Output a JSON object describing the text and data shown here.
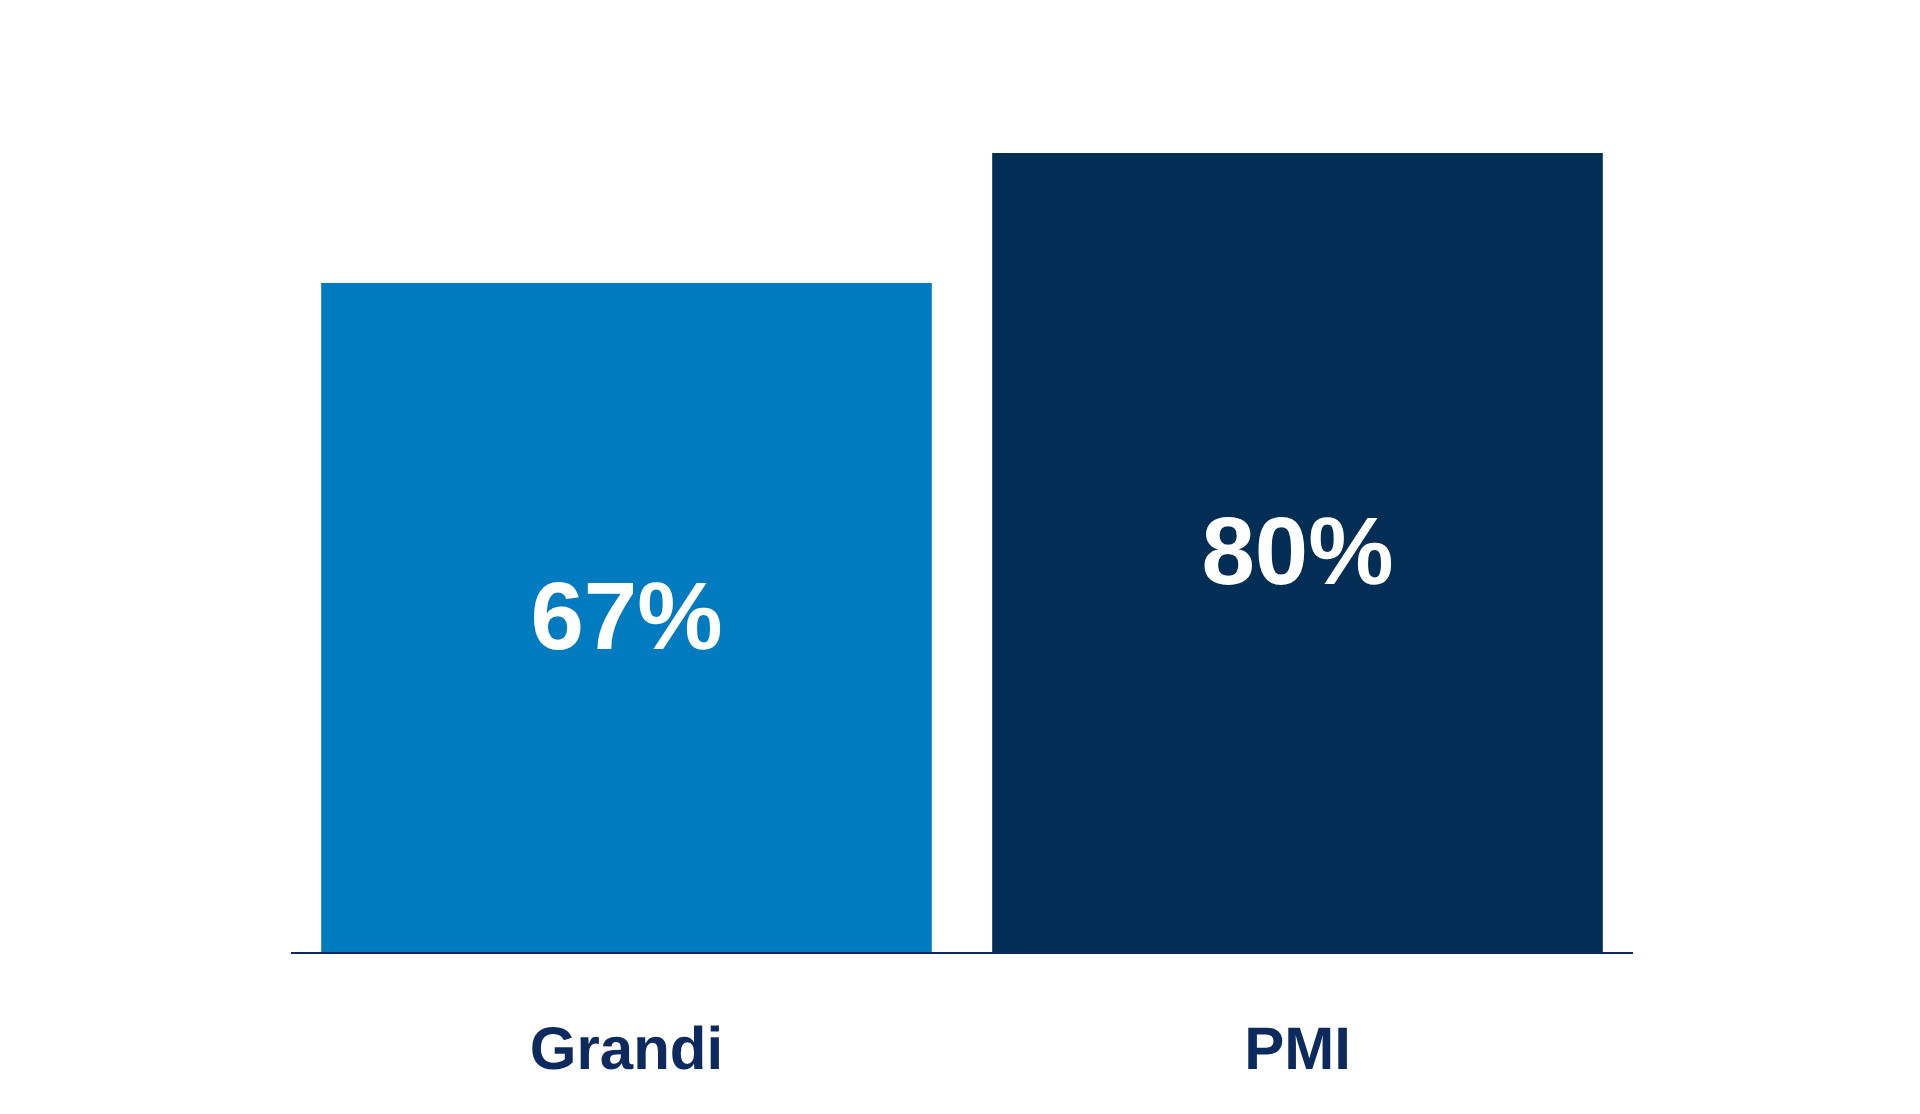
{
  "chart_data": {
    "type": "bar",
    "categories": [
      "Grandi",
      "PMI"
    ],
    "values": [
      67,
      80
    ],
    "colors": [
      "#007bc0",
      "#022d54"
    ],
    "value_labels": [
      "67%",
      "80%"
    ]
  }
}
